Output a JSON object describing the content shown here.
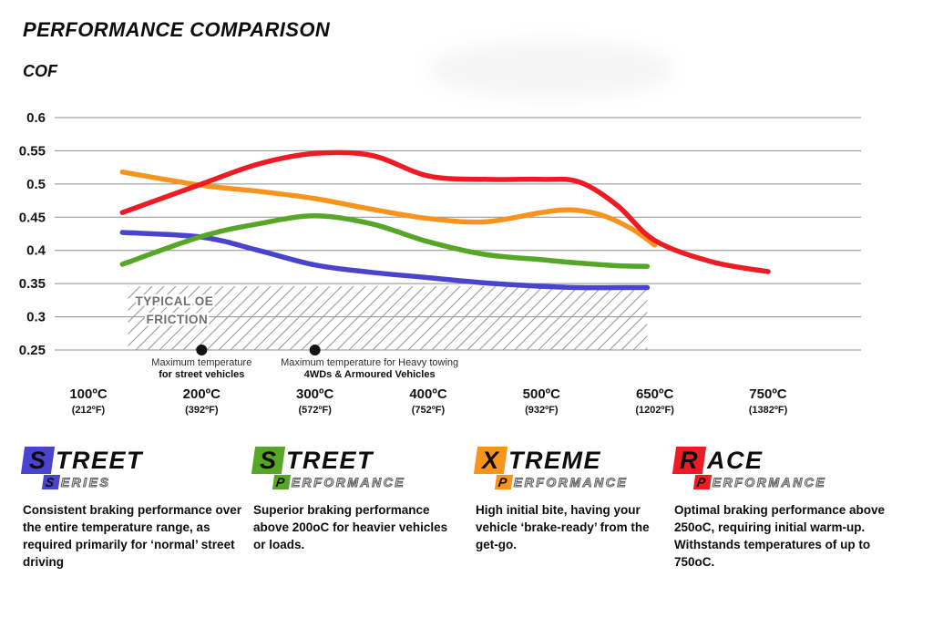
{
  "chart_data": {
    "type": "line",
    "title": "PERFORMANCE COMPARISON",
    "ylabel": "COF",
    "ylim": [
      0.25,
      0.6
    ],
    "yticks": [
      0.6,
      0.55,
      0.5,
      0.45,
      0.4,
      0.35,
      0.3,
      0.25
    ],
    "grid": true,
    "x_ticks": [
      {
        "temp": 100,
        "celsius": "100ºC",
        "fahrenheit": "(212ºF)"
      },
      {
        "temp": 200,
        "celsius": "200ºC",
        "fahrenheit": "(392ºF)"
      },
      {
        "temp": 300,
        "celsius": "300ºC",
        "fahrenheit": "(572ºF)"
      },
      {
        "temp": 400,
        "celsius": "400ºC",
        "fahrenheit": "(752ºF)"
      },
      {
        "temp": 500,
        "celsius": "500ºC",
        "fahrenheit": "(932ºF)"
      },
      {
        "temp": 650,
        "celsius": "650ºC",
        "fahrenheit": "(1202ºF)"
      },
      {
        "temp": 750,
        "celsius": "750ºC",
        "fahrenheit": "(1382ºF)"
      }
    ],
    "series": [
      {
        "name": "Street Series",
        "color": "#4a44cc",
        "points": [
          [
            130,
            0.427
          ],
          [
            200,
            0.42
          ],
          [
            250,
            0.4
          ],
          [
            300,
            0.378
          ],
          [
            350,
            0.367
          ],
          [
            400,
            0.359
          ],
          [
            450,
            0.351
          ],
          [
            500,
            0.346
          ],
          [
            550,
            0.344
          ],
          [
            600,
            0.344
          ],
          [
            640,
            0.344
          ]
        ]
      },
      {
        "name": "Street Performance",
        "color": "#56a727",
        "points": [
          [
            130,
            0.379
          ],
          [
            200,
            0.421
          ],
          [
            250,
            0.44
          ],
          [
            300,
            0.452
          ],
          [
            350,
            0.44
          ],
          [
            400,
            0.413
          ],
          [
            450,
            0.394
          ],
          [
            500,
            0.386
          ],
          [
            550,
            0.381
          ],
          [
            600,
            0.377
          ],
          [
            640,
            0.376
          ]
        ]
      },
      {
        "name": "Xtreme Performance",
        "color": "#f7941e",
        "points": [
          [
            130,
            0.518
          ],
          [
            200,
            0.498
          ],
          [
            250,
            0.489
          ],
          [
            300,
            0.478
          ],
          [
            350,
            0.462
          ],
          [
            400,
            0.448
          ],
          [
            450,
            0.443
          ],
          [
            500,
            0.457
          ],
          [
            540,
            0.461
          ],
          [
            580,
            0.453
          ],
          [
            620,
            0.432
          ],
          [
            650,
            0.408
          ]
        ]
      },
      {
        "name": "Race Performance",
        "color": "#ed1c24",
        "points": [
          [
            130,
            0.457
          ],
          [
            200,
            0.5
          ],
          [
            250,
            0.53
          ],
          [
            300,
            0.546
          ],
          [
            350,
            0.543
          ],
          [
            400,
            0.512
          ],
          [
            450,
            0.507
          ],
          [
            500,
            0.507
          ],
          [
            550,
            0.503
          ],
          [
            600,
            0.468
          ],
          [
            650,
            0.415
          ],
          [
            700,
            0.383
          ],
          [
            750,
            0.368
          ]
        ]
      }
    ],
    "oe_band": {
      "label_line1": "TYPICAL OE",
      "label_line2": "FRICTION",
      "temp_from": 135,
      "temp_to": 640,
      "cof_top": 0.346,
      "cof_bottom": 0.25
    },
    "markers": [
      {
        "temp": 200,
        "line1": "Maximum temperature",
        "line2": "for street vehicles"
      },
      {
        "temp": 300,
        "line1": "Maximum temperature for Heavy towing",
        "line2": "4WDs & Armoured Vehicles"
      }
    ]
  },
  "legend": {
    "items": [
      {
        "word_first": "S",
        "word_rest": "TREET",
        "sub_first": "S",
        "sub_rest": "ERIES",
        "accent": "#4a44cc",
        "description": "Consistent braking performance over the entire temperature range, as required primarily for ‘normal’ street driving"
      },
      {
        "word_first": "S",
        "word_rest": "TREET",
        "sub_first": "P",
        "sub_rest": "ERFORMANCE",
        "accent": "#56a727",
        "description": "Superior braking performance above 200oC for heavier vehicles or loads."
      },
      {
        "word_first": "X",
        "word_rest": "TREME",
        "sub_first": "P",
        "sub_rest": "ERFORMANCE",
        "accent": "#f7941e",
        "description": "High initial bite, having your vehicle ‘brake-ready’ from the get-go."
      },
      {
        "word_first": "R",
        "word_rest": "ACE",
        "sub_first": "P",
        "sub_rest": "ERFORMANCE",
        "accent": "#ed1c24",
        "description": "Optimal braking performance above 250oC, requiring initial warm-up. Withstands temperatures of up to 750oC."
      }
    ]
  }
}
